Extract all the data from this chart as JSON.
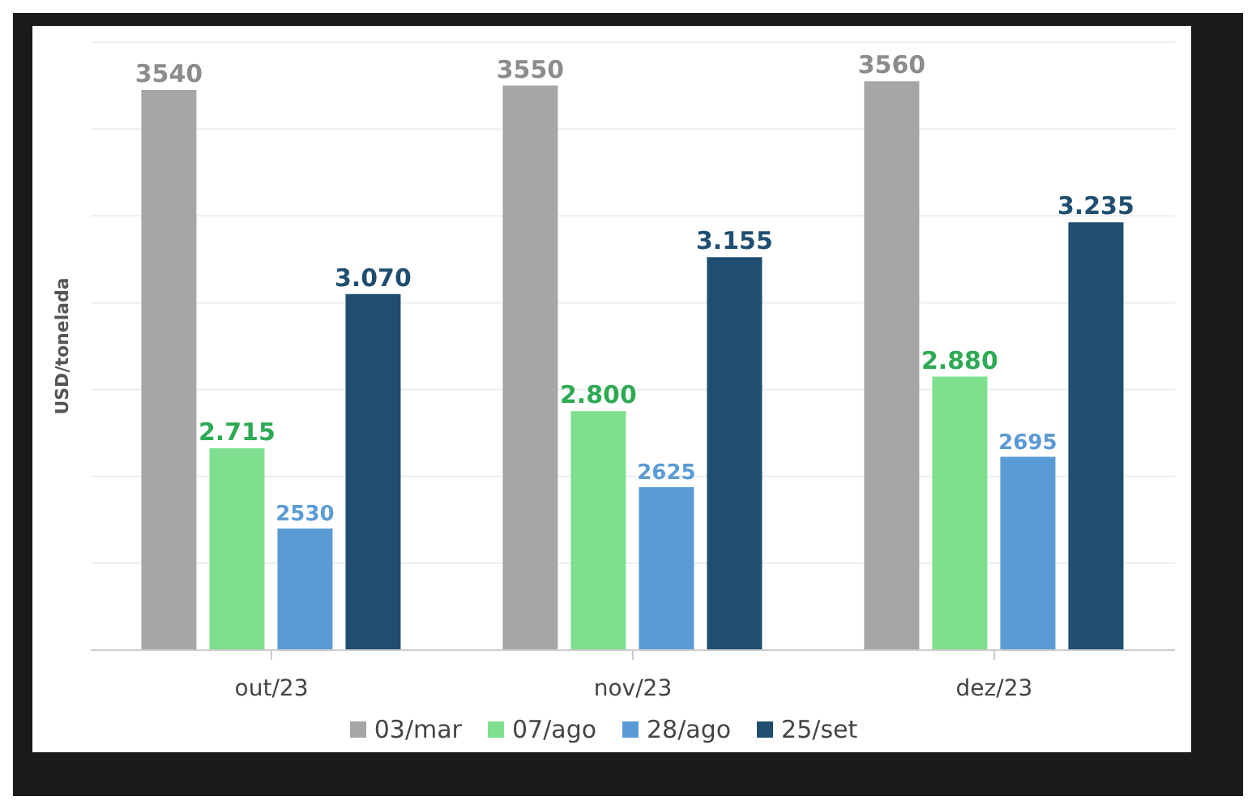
{
  "chart_data": {
    "type": "bar",
    "ylabel": "USD/tonelada",
    "categories": [
      "out/23",
      "nov/23",
      "dez/23"
    ],
    "series": [
      {
        "name": "03/mar",
        "color": "#a6a6a6",
        "values": [
          3540,
          3550,
          3560
        ],
        "value_labels": [
          "3540",
          "3550",
          "3560"
        ]
      },
      {
        "name": "07/ago",
        "color": "#7ee08f",
        "values": [
          2715,
          2800,
          2880
        ],
        "value_labels": [
          "2.715",
          "2.800",
          "2.880"
        ]
      },
      {
        "name": "28/ago",
        "color": "#5b9bd5",
        "values": [
          2530,
          2625,
          2695
        ],
        "value_labels": [
          "2530",
          "2625",
          "2695"
        ]
      },
      {
        "name": "25/set",
        "color": "#1f4e70",
        "values": [
          3070,
          3155,
          3235
        ],
        "value_labels": [
          "3.070",
          "3.155",
          "3.235"
        ]
      }
    ],
    "ylim": [
      2250,
      3650
    ],
    "yticks": [
      {
        "value": 2450,
        "label": null
      },
      {
        "value": 2650,
        "label": null
      },
      {
        "value": 2850,
        "label": null
      },
      {
        "value": 3050,
        "label": null
      },
      {
        "value": 3250,
        "label": null
      },
      {
        "value": 3450,
        "label": null
      }
    ],
    "tick_labels": "x",
    "grid": "y",
    "legend": "bottom"
  }
}
